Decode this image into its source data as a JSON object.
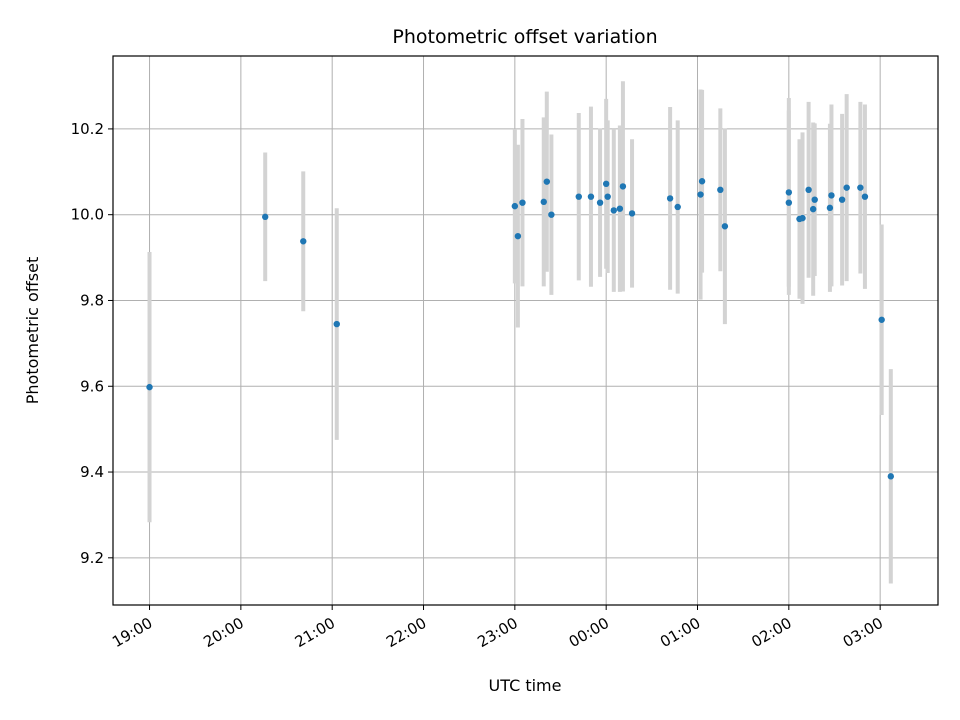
{
  "chart_data": {
    "type": "scatter",
    "title": "Photometric offset variation",
    "xlabel": "UTC time",
    "ylabel": "Photometric offset",
    "x_unit": "UTC time (HH:MM)",
    "xlim": [
      "18:36",
      "03:38"
    ],
    "ylim": [
      9.09,
      10.37
    ],
    "x_ticks": [
      "19:00",
      "20:00",
      "21:00",
      "22:00",
      "23:00",
      "00:00",
      "01:00",
      "02:00",
      "03:00"
    ],
    "y_ticks": [
      "9.2",
      "9.4",
      "9.6",
      "9.8",
      "10.0",
      "10.2"
    ],
    "grid": true,
    "point_color": "#1f77b4",
    "errorbar_color": "#d3d3d3",
    "points": [
      {
        "t": "19:00",
        "y": 9.598,
        "err": 0.315
      },
      {
        "t": "20:16",
        "y": 9.995,
        "err": 0.15
      },
      {
        "t": "20:41",
        "y": 9.938,
        "err": 0.163
      },
      {
        "t": "21:03",
        "y": 9.745,
        "err": 0.27
      },
      {
        "t": "23:00",
        "y": 10.02,
        "err": 0.18
      },
      {
        "t": "23:02",
        "y": 9.95,
        "err": 0.213
      },
      {
        "t": "23:05",
        "y": 10.028,
        "err": 0.195
      },
      {
        "t": "23:19",
        "y": 10.03,
        "err": 0.197
      },
      {
        "t": "23:21",
        "y": 10.077,
        "err": 0.21
      },
      {
        "t": "23:24",
        "y": 10.0,
        "err": 0.187
      },
      {
        "t": "23:42",
        "y": 10.042,
        "err": 0.195
      },
      {
        "t": "23:50",
        "y": 10.042,
        "err": 0.21
      },
      {
        "t": "23:56",
        "y": 10.028,
        "err": 0.173
      },
      {
        "t": "00:00",
        "y": 10.072,
        "err": 0.198
      },
      {
        "t": "00:01",
        "y": 10.042,
        "err": 0.178
      },
      {
        "t": "00:05",
        "y": 10.01,
        "err": 0.19
      },
      {
        "t": "00:09",
        "y": 10.014,
        "err": 0.194
      },
      {
        "t": "00:11",
        "y": 10.066,
        "err": 0.245
      },
      {
        "t": "00:17",
        "y": 10.003,
        "err": 0.173
      },
      {
        "t": "00:42",
        "y": 10.038,
        "err": 0.213
      },
      {
        "t": "00:47",
        "y": 10.018,
        "err": 0.202
      },
      {
        "t": "01:02",
        "y": 10.047,
        "err": 0.245
      },
      {
        "t": "01:03",
        "y": 10.078,
        "err": 0.213
      },
      {
        "t": "01:15",
        "y": 10.058,
        "err": 0.19
      },
      {
        "t": "01:18",
        "y": 9.973,
        "err": 0.228
      },
      {
        "t": "02:00",
        "y": 10.028,
        "err": 0.215
      },
      {
        "t": "02:00",
        "y": 10.052,
        "err": 0.22
      },
      {
        "t": "02:07",
        "y": 9.99,
        "err": 0.186
      },
      {
        "t": "02:09",
        "y": 9.992,
        "err": 0.2
      },
      {
        "t": "02:13",
        "y": 10.058,
        "err": 0.205
      },
      {
        "t": "02:16",
        "y": 10.013,
        "err": 0.202
      },
      {
        "t": "02:17",
        "y": 10.035,
        "err": 0.178
      },
      {
        "t": "02:27",
        "y": 10.016,
        "err": 0.196
      },
      {
        "t": "02:28",
        "y": 10.045,
        "err": 0.212
      },
      {
        "t": "02:35",
        "y": 10.035,
        "err": 0.2
      },
      {
        "t": "02:38",
        "y": 10.063,
        "err": 0.218
      },
      {
        "t": "02:47",
        "y": 10.063,
        "err": 0.2
      },
      {
        "t": "02:50",
        "y": 10.042,
        "err": 0.215
      },
      {
        "t": "03:01",
        "y": 9.755,
        "err": 0.222
      },
      {
        "t": "03:07",
        "y": 9.39,
        "err": 0.25
      }
    ]
  }
}
